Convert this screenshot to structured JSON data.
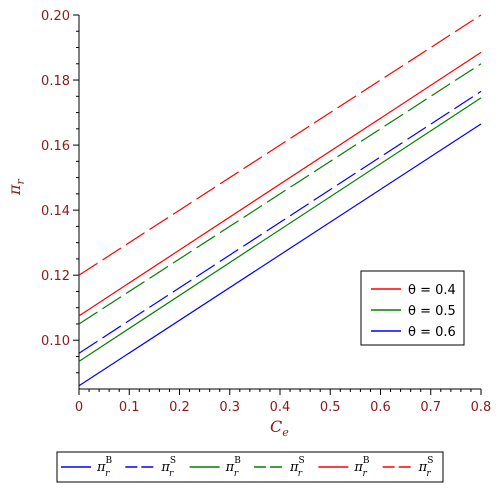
{
  "chart_data": {
    "type": "line",
    "xlabel_main": "C",
    "xlabel_sub": "e",
    "ylabel_main": "π",
    "ylabel_sub": "r",
    "xlim": [
      0,
      0.8
    ],
    "ylim": [
      0.085,
      0.2
    ],
    "x_ticks": [
      "0",
      "0.1",
      "0.2",
      "0.3",
      "0.4",
      "0.5",
      "0.6",
      "0.7",
      "0.8"
    ],
    "y_ticks": [
      "0.10",
      "0.12",
      "0.14",
      "0.16",
      "0.18",
      "0.20"
    ],
    "grid": false,
    "series": [
      {
        "name_main": "π",
        "name_sub": "r",
        "name_sup": "B",
        "theta": "0.6",
        "color": "#0000ff",
        "dash": "solid",
        "x": [
          0,
          0.8
        ],
        "y": [
          0.086,
          0.1665
        ]
      },
      {
        "name_main": "π",
        "name_sub": "r",
        "name_sup": "S",
        "theta": "0.6",
        "color": "#0000ff",
        "dash": "dashed",
        "x": [
          0,
          0.8
        ],
        "y": [
          0.096,
          0.1765
        ]
      },
      {
        "name_main": "π",
        "name_sub": "r",
        "name_sup": "B",
        "theta": "0.5",
        "color": "#008000",
        "dash": "solid",
        "x": [
          0,
          0.8
        ],
        "y": [
          0.0935,
          0.1745
        ]
      },
      {
        "name_main": "π",
        "name_sub": "r",
        "name_sup": "S",
        "theta": "0.5",
        "color": "#008000",
        "dash": "dashed",
        "x": [
          0,
          0.8
        ],
        "y": [
          0.105,
          0.185
        ]
      },
      {
        "name_main": "π",
        "name_sub": "r",
        "name_sup": "B",
        "theta": "0.4",
        "color": "#ff0000",
        "dash": "solid",
        "x": [
          0,
          0.8
        ],
        "y": [
          0.1075,
          0.1885
        ]
      },
      {
        "name_main": "π",
        "name_sub": "r",
        "name_sup": "S",
        "theta": "0.4",
        "color": "#ff0000",
        "dash": "dashed",
        "x": [
          0,
          0.8
        ],
        "y": [
          0.12,
          0.2
        ]
      }
    ],
    "theta_legend": [
      {
        "label": "θ = 0.4",
        "color": "#ff0000"
      },
      {
        "label": "θ = 0.5",
        "color": "#008000"
      },
      {
        "label": "θ = 0.6",
        "color": "#0000ff"
      }
    ],
    "theta_legend_position": "right-middle",
    "series_legend_position": "bottom"
  }
}
